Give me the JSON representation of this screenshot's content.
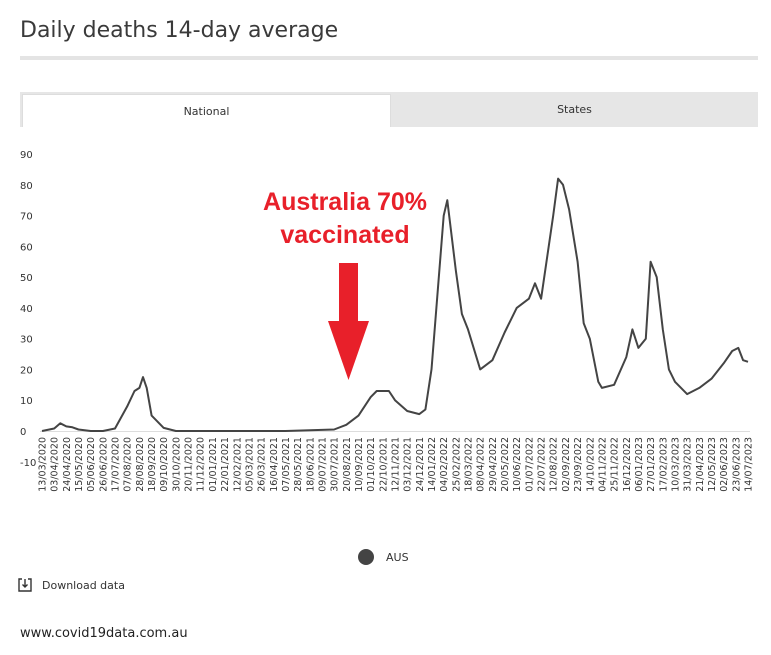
{
  "title": "Daily deaths 14-day average",
  "tabs": [
    {
      "label": "National",
      "active": true
    },
    {
      "label": "States",
      "active": false
    }
  ],
  "download_label": "Download data",
  "footer": "www.covid19data.com.au",
  "annotation": {
    "line1": "Australia 70%",
    "line2": "vaccinated",
    "color": "#e8202a"
  },
  "chart_data": {
    "type": "line",
    "title": "Daily deaths 14-day average",
    "ylim": [
      -10,
      90
    ],
    "yticks": [
      90,
      80,
      70,
      60,
      50,
      40,
      30,
      20,
      10,
      0,
      -10
    ],
    "legend": [
      {
        "name": "AUS",
        "color": "#444444"
      }
    ],
    "legend_position": "bottom-center",
    "xticks": [
      "13/03/2020",
      "03/04/2020",
      "24/04/2020",
      "15/05/2020",
      "05/06/2020",
      "26/06/2020",
      "17/07/2020",
      "07/08/2020",
      "28/08/2020",
      "18/09/2020",
      "09/10/2020",
      "30/10/2020",
      "20/11/2020",
      "11/12/2020",
      "01/01/2021",
      "22/01/2021",
      "12/02/2021",
      "05/03/2021",
      "26/03/2021",
      "16/04/2021",
      "07/05/2021",
      "28/05/2021",
      "18/06/2021",
      "09/07/2021",
      "30/07/2021",
      "20/08/2021",
      "10/09/2021",
      "01/10/2021",
      "22/10/2021",
      "12/11/2021",
      "03/12/2021",
      "24/12/2021",
      "14/01/2022",
      "04/02/2022",
      "25/02/2022",
      "18/03/2022",
      "08/04/2022",
      "29/04/2022",
      "20/05/2022",
      "10/06/2022",
      "01/07/2022",
      "22/07/2022",
      "12/08/2022",
      "02/09/2022",
      "23/09/2022",
      "14/10/2022",
      "04/11/2022",
      "25/11/2022",
      "16/12/2022",
      "06/01/2023",
      "27/01/2023",
      "17/02/2023",
      "10/03/2023",
      "31/03/2023",
      "21/04/2023",
      "12/05/2023",
      "02/06/2023",
      "23/06/2023",
      "14/07/2023"
    ],
    "series": [
      {
        "name": "AUS",
        "color": "#444444",
        "points": [
          [
            0,
            0
          ],
          [
            1,
            0.8
          ],
          [
            1.5,
            2.5
          ],
          [
            2,
            1.5
          ],
          [
            2.5,
            1.2
          ],
          [
            3,
            0.5
          ],
          [
            4,
            0
          ],
          [
            5,
            0
          ],
          [
            6,
            0.8
          ],
          [
            7,
            8
          ],
          [
            7.6,
            13
          ],
          [
            8,
            14
          ],
          [
            8.3,
            17.5
          ],
          [
            8.6,
            14
          ],
          [
            9,
            5
          ],
          [
            10,
            1
          ],
          [
            11,
            0
          ],
          [
            14,
            0
          ],
          [
            20,
            0
          ],
          [
            24,
            0.5
          ],
          [
            25,
            2
          ],
          [
            26,
            5
          ],
          [
            27,
            11
          ],
          [
            27.5,
            13
          ],
          [
            28.5,
            13
          ],
          [
            29,
            10
          ],
          [
            30,
            6.5
          ],
          [
            31,
            5.5
          ],
          [
            31.5,
            7
          ],
          [
            32,
            20
          ],
          [
            33,
            70
          ],
          [
            33.3,
            75
          ],
          [
            34,
            52
          ],
          [
            34.5,
            38
          ],
          [
            35,
            33
          ],
          [
            36,
            20
          ],
          [
            37,
            23
          ],
          [
            38,
            32
          ],
          [
            39,
            40
          ],
          [
            40,
            43
          ],
          [
            40.5,
            48
          ],
          [
            41,
            43
          ],
          [
            42,
            70
          ],
          [
            42.4,
            82
          ],
          [
            42.8,
            80
          ],
          [
            43.3,
            72
          ],
          [
            44,
            55
          ],
          [
            44.5,
            35
          ],
          [
            45,
            30
          ],
          [
            45.7,
            16
          ],
          [
            46,
            14
          ],
          [
            47,
            15
          ],
          [
            48,
            24
          ],
          [
            48.5,
            33
          ],
          [
            49,
            27
          ],
          [
            49.6,
            30
          ],
          [
            50,
            55
          ],
          [
            50.5,
            50
          ],
          [
            51,
            33
          ],
          [
            51.5,
            20
          ],
          [
            52,
            16
          ],
          [
            53,
            12
          ],
          [
            54,
            14
          ],
          [
            55,
            17
          ],
          [
            56,
            22
          ],
          [
            56.7,
            26
          ],
          [
            57.2,
            27
          ],
          [
            57.6,
            23
          ],
          [
            58,
            22.5
          ]
        ]
      }
    ]
  }
}
